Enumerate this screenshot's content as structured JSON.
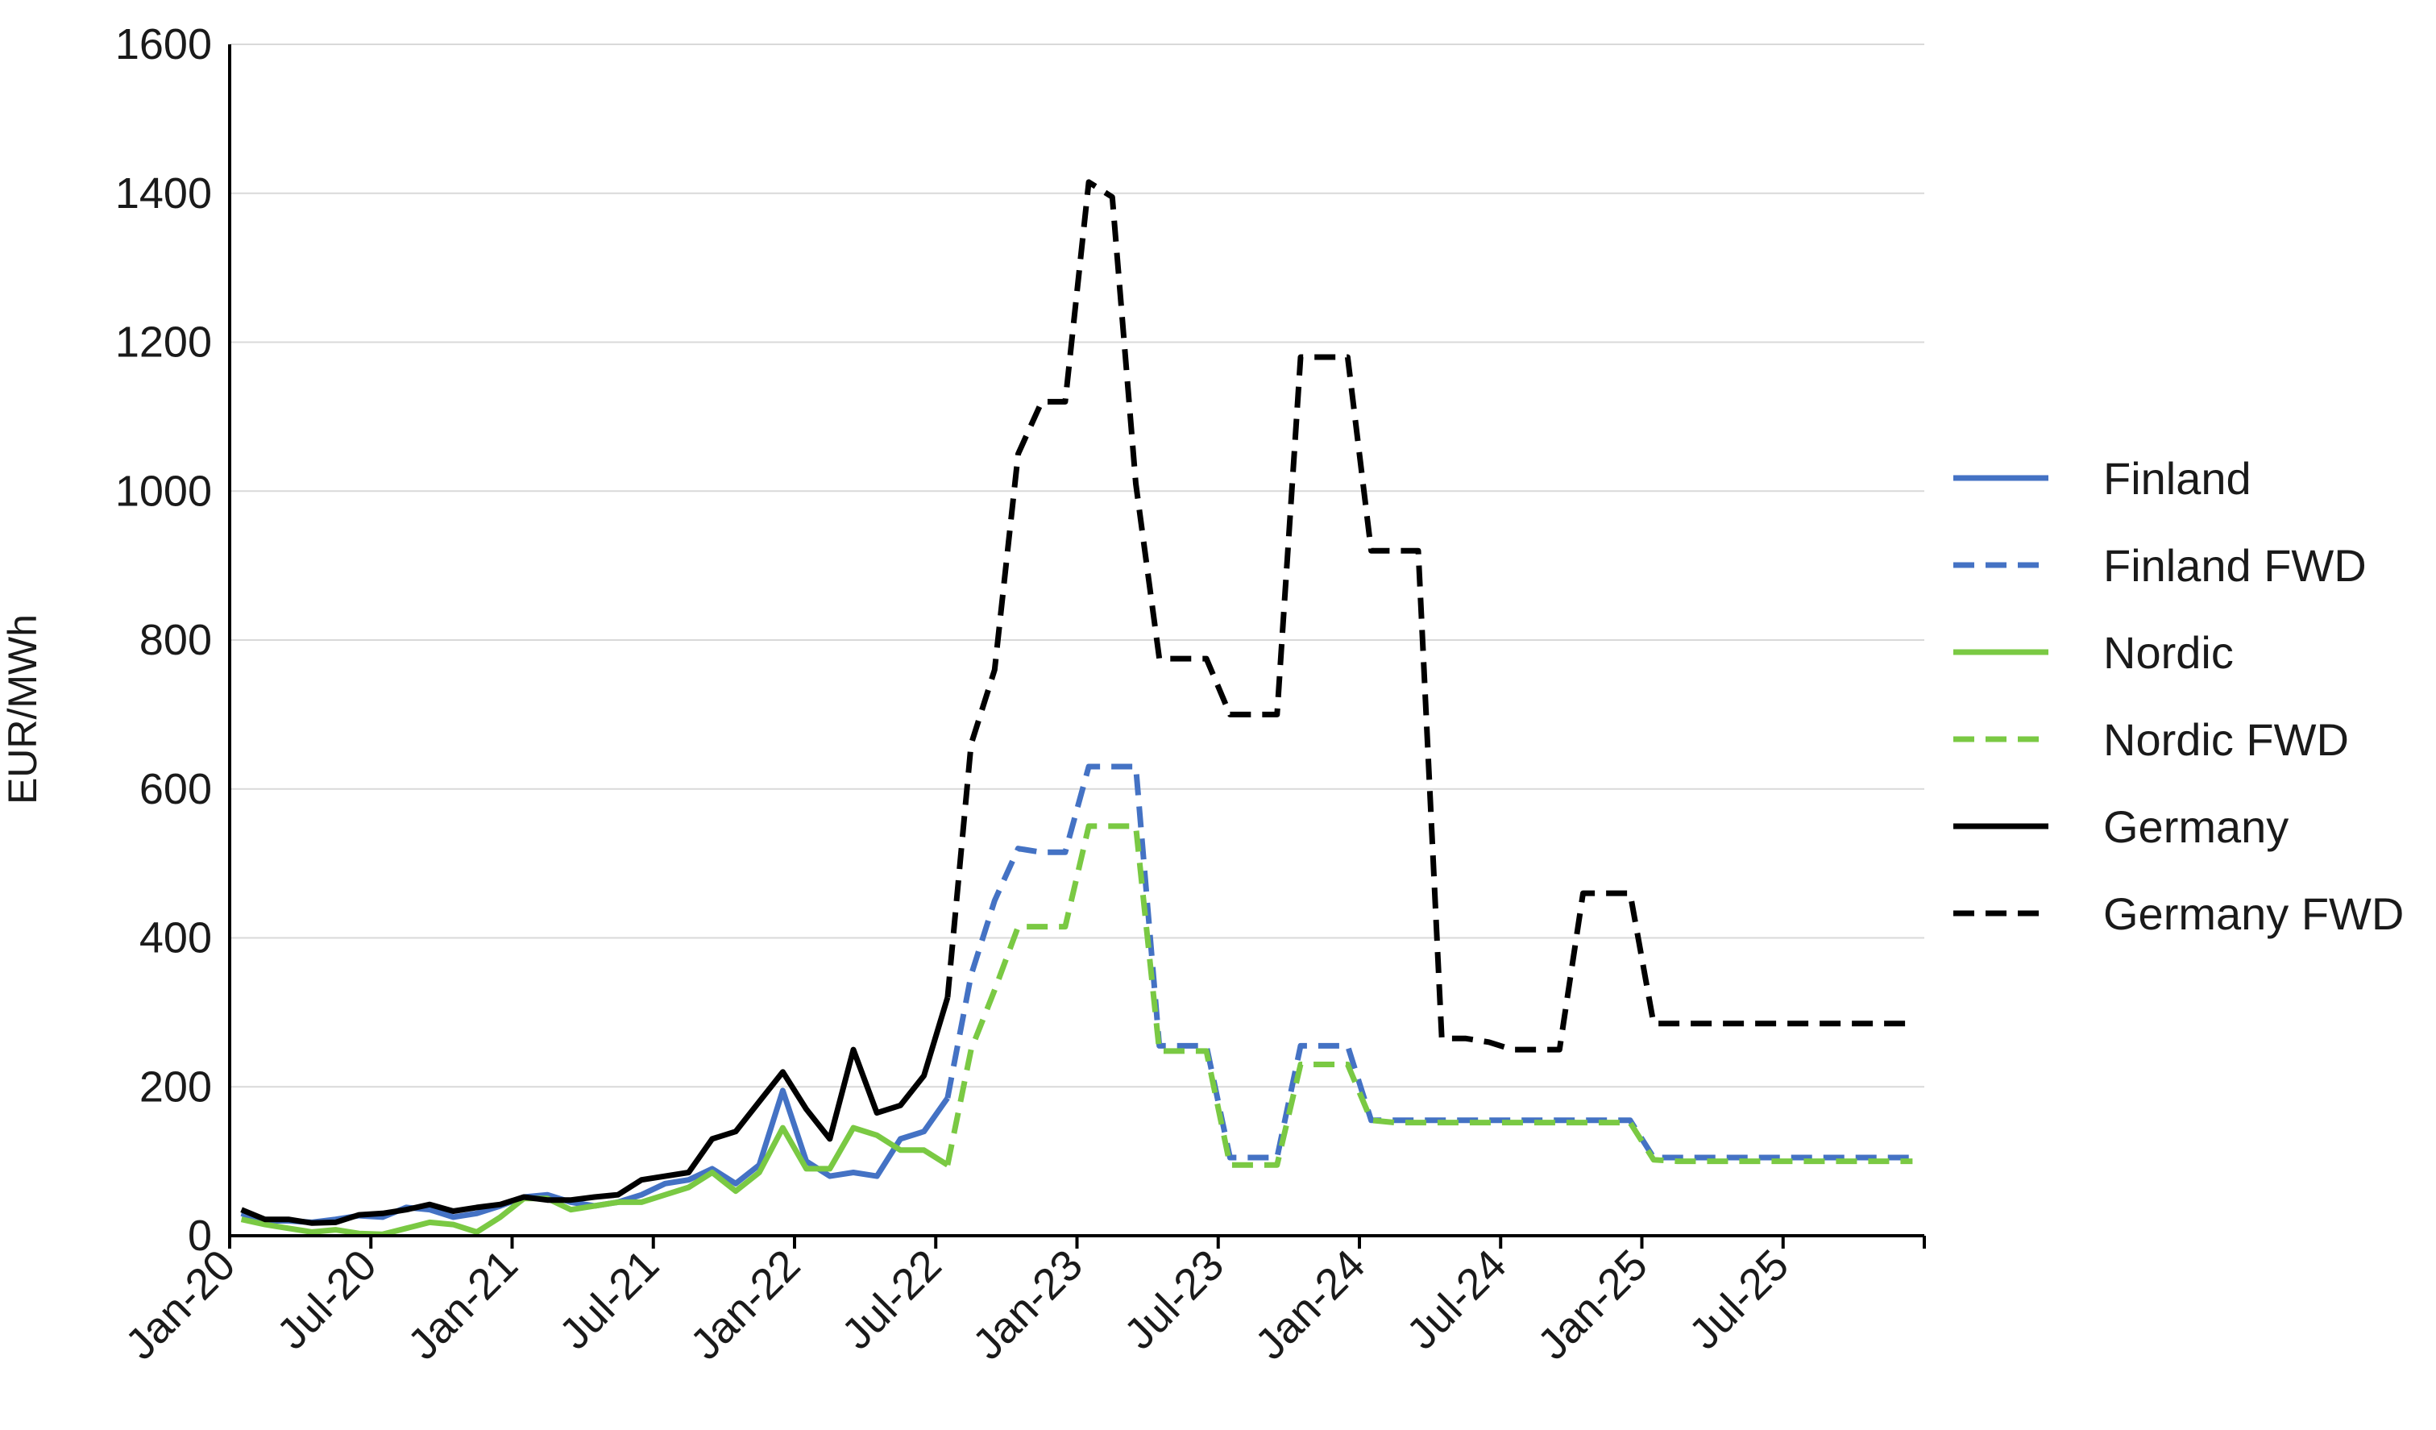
{
  "chart_data": {
    "type": "line",
    "ylabel": "EUR/MWh",
    "xlabel": "",
    "ylim": [
      0,
      1600
    ],
    "yticks": [
      "0",
      "200",
      "400",
      "600",
      "800",
      "1000",
      "1200",
      "1400",
      "1600"
    ],
    "x_axis": {
      "start": "Jan-20",
      "end": "Dec-25",
      "months": 72
    },
    "x_tick_labels": [
      "Jan-20",
      "Jul-20",
      "Jan-21",
      "Jul-21",
      "Jan-22",
      "Jul-22",
      "Jan-23",
      "Jul-23",
      "Jan-24",
      "Jul-24",
      "Jan-25",
      "Jul-25"
    ],
    "grid": "horizontal",
    "legend_position": "right",
    "series": [
      {
        "name": "Finland",
        "color": "#4472C4",
        "dash": "solid",
        "x": [
          "Jan-20",
          "Feb-20",
          "Mar-20",
          "Apr-20",
          "May-20",
          "Jun-20",
          "Jul-20",
          "Aug-20",
          "Sep-20",
          "Oct-20",
          "Nov-20",
          "Dec-20",
          "Jan-21",
          "Feb-21",
          "Mar-21",
          "Apr-21",
          "May-21",
          "Jun-21",
          "Jul-21",
          "Aug-21",
          "Sep-21",
          "Oct-21",
          "Nov-21",
          "Dec-21",
          "Jan-22",
          "Feb-22",
          "Mar-22",
          "Apr-22",
          "May-22",
          "Jun-22",
          "Jul-22"
        ],
        "values": [
          30,
          20,
          20,
          18,
          22,
          27,
          25,
          38,
          35,
          25,
          30,
          40,
          52,
          55,
          45,
          40,
          45,
          55,
          70,
          75,
          90,
          70,
          95,
          195,
          100,
          80,
          85,
          80,
          130,
          140,
          185
        ]
      },
      {
        "name": "Finland FWD",
        "color": "#4472C4",
        "dash": "dashed",
        "x": [
          "Jul-22",
          "Aug-22",
          "Sep-22",
          "Oct-22",
          "Nov-22",
          "Dec-22",
          "Jan-23",
          "Feb-23",
          "Mar-23",
          "Apr-23",
          "May-23",
          "Jun-23",
          "Jul-23",
          "Aug-23",
          "Sep-23",
          "Oct-23",
          "Nov-23",
          "Dec-23",
          "Jan-24",
          "Feb-24",
          "Mar-24",
          "Apr-24",
          "May-24",
          "Jun-24",
          "Jul-24",
          "Aug-24",
          "Sep-24",
          "Oct-24",
          "Nov-24",
          "Dec-24",
          "Jan-25",
          "Feb-25",
          "Mar-25",
          "Apr-25",
          "May-25",
          "Jun-25",
          "Jul-25",
          "Aug-25",
          "Sep-25",
          "Oct-25",
          "Nov-25",
          "Dec-25"
        ],
        "values": [
          185,
          350,
          450,
          520,
          515,
          515,
          630,
          630,
          630,
          255,
          255,
          255,
          105,
          105,
          105,
          255,
          255,
          255,
          155,
          155,
          155,
          155,
          155,
          155,
          155,
          155,
          155,
          155,
          155,
          155,
          105,
          105,
          105,
          105,
          105,
          105,
          105,
          105,
          105,
          105,
          105,
          105
        ]
      },
      {
        "name": "Nordic",
        "color": "#7AC943",
        "dash": "solid",
        "x": [
          "Jan-20",
          "Feb-20",
          "Mar-20",
          "Apr-20",
          "May-20",
          "Jun-20",
          "Jul-20",
          "Aug-20",
          "Sep-20",
          "Oct-20",
          "Nov-20",
          "Dec-20",
          "Jan-21",
          "Feb-21",
          "Mar-21",
          "Apr-21",
          "May-21",
          "Jun-21",
          "Jul-21",
          "Aug-21",
          "Sep-21",
          "Oct-21",
          "Nov-21",
          "Dec-21",
          "Jan-22",
          "Feb-22",
          "Mar-22",
          "Apr-22",
          "May-22",
          "Jun-22",
          "Jul-22"
        ],
        "values": [
          22,
          15,
          10,
          5,
          8,
          3,
          2,
          10,
          18,
          15,
          5,
          25,
          50,
          50,
          35,
          40,
          45,
          45,
          55,
          65,
          85,
          60,
          85,
          145,
          90,
          90,
          145,
          135,
          115,
          115,
          95
        ]
      },
      {
        "name": "Nordic FWD",
        "color": "#7AC943",
        "dash": "dashed",
        "x": [
          "Jul-22",
          "Aug-22",
          "Sep-22",
          "Oct-22",
          "Nov-22",
          "Dec-22",
          "Jan-23",
          "Feb-23",
          "Mar-23",
          "Apr-23",
          "May-23",
          "Jun-23",
          "Jul-23",
          "Aug-23",
          "Sep-23",
          "Oct-23",
          "Nov-23",
          "Dec-23",
          "Jan-24",
          "Feb-24",
          "Mar-24",
          "Apr-24",
          "May-24",
          "Jun-24",
          "Jul-24",
          "Aug-24",
          "Sep-24",
          "Oct-24",
          "Nov-24",
          "Dec-24",
          "Jan-25",
          "Feb-25",
          "Mar-25",
          "Apr-25",
          "May-25",
          "Jun-25",
          "Jul-25",
          "Aug-25",
          "Sep-25",
          "Oct-25",
          "Nov-25",
          "Dec-25"
        ],
        "values": [
          95,
          250,
          330,
          415,
          415,
          415,
          550,
          550,
          550,
          248,
          248,
          248,
          95,
          95,
          95,
          230,
          230,
          230,
          155,
          152,
          152,
          152,
          152,
          152,
          152,
          152,
          152,
          152,
          152,
          152,
          102,
          100,
          100,
          100,
          100,
          100,
          100,
          100,
          100,
          100,
          100,
          100
        ]
      },
      {
        "name": "Germany",
        "color": "#000000",
        "dash": "solid",
        "x": [
          "Jan-20",
          "Feb-20",
          "Mar-20",
          "Apr-20",
          "May-20",
          "Jun-20",
          "Jul-20",
          "Aug-20",
          "Sep-20",
          "Oct-20",
          "Nov-20",
          "Dec-20",
          "Jan-21",
          "Feb-21",
          "Mar-21",
          "Apr-21",
          "May-21",
          "Jun-21",
          "Jul-21",
          "Aug-21",
          "Sep-21",
          "Oct-21",
          "Nov-21",
          "Dec-21",
          "Jan-22",
          "Feb-22",
          "Mar-22",
          "Apr-22",
          "May-22",
          "Jun-22",
          "Jul-22"
        ],
        "values": [
          35,
          22,
          22,
          17,
          18,
          28,
          30,
          35,
          42,
          33,
          38,
          42,
          52,
          48,
          48,
          52,
          55,
          75,
          80,
          85,
          130,
          140,
          180,
          220,
          170,
          130,
          250,
          165,
          175,
          215,
          320
        ]
      },
      {
        "name": "Germany FWD",
        "color": "#000000",
        "dash": "dashed",
        "x": [
          "Jul-22",
          "Aug-22",
          "Sep-22",
          "Oct-22",
          "Nov-22",
          "Dec-22",
          "Jan-23",
          "Feb-23",
          "Mar-23",
          "Apr-23",
          "May-23",
          "Jun-23",
          "Jul-23",
          "Aug-23",
          "Sep-23",
          "Oct-23",
          "Nov-23",
          "Dec-23",
          "Jan-24",
          "Feb-24",
          "Mar-24",
          "Apr-24",
          "May-24",
          "Jun-24",
          "Jul-24",
          "Aug-24",
          "Sep-24",
          "Oct-24",
          "Nov-24",
          "Dec-24",
          "Jan-25",
          "Feb-25",
          "Mar-25",
          "Apr-25",
          "May-25",
          "Jun-25",
          "Jul-25",
          "Aug-25",
          "Sep-25",
          "Oct-25",
          "Nov-25",
          "Dec-25"
        ],
        "values": [
          320,
          660,
          760,
          1050,
          1120,
          1120,
          1415,
          1395,
          1010,
          775,
          775,
          775,
          700,
          700,
          700,
          1180,
          1180,
          1180,
          920,
          920,
          920,
          265,
          265,
          260,
          250,
          250,
          250,
          460,
          460,
          460,
          285,
          285,
          285,
          285,
          285,
          285,
          285,
          285,
          285,
          285,
          285,
          285
        ]
      }
    ]
  }
}
